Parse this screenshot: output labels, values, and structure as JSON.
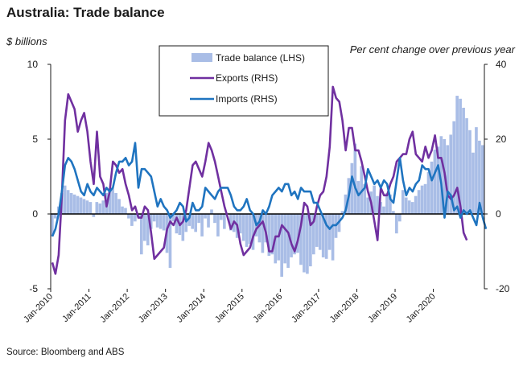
{
  "title": "Australia: Trade balance",
  "source": "Source: Bloomberg and ABS",
  "colors": {
    "balance": "#a9bde6",
    "exports": "#7030a0",
    "imports": "#1f74c0",
    "zero": "#000000"
  },
  "chart_data": {
    "type": "bar",
    "ylabel_left": "$ billions",
    "ylabel_right": "Per cent change over previous year",
    "left_axis": {
      "min": -5,
      "max": 10,
      "ticks": [
        -5,
        0,
        5,
        10
      ]
    },
    "right_axis": {
      "min": -20,
      "max": 40,
      "ticks": [
        -20,
        0,
        20,
        40
      ]
    },
    "x_tick_labels": [
      "Jan-2010",
      "Jan-2011",
      "Jan-2012",
      "Jan-2013",
      "Jan-2014",
      "Jan-2015",
      "Jan-2016",
      "Jan-2017",
      "Jan-2018",
      "Jan-2019",
      "Jan-2020"
    ],
    "legend": {
      "position": "top-center",
      "entries": [
        "Trade balance (LHS)",
        "Exports (RHS)",
        "Imports (RHS)"
      ]
    },
    "grid": false,
    "series": [
      {
        "name": "Trade balance (LHS)",
        "type": "bar",
        "axis": "left",
        "unit": "$ billions",
        "values": [
          -1.5,
          -0.3,
          0.5,
          1.4,
          1.9,
          1.6,
          1.4,
          1.3,
          1.2,
          1.1,
          1.0,
          0.9,
          0.8,
          -0.2,
          0.8,
          0.7,
          0.9,
          1.4,
          1.6,
          1.7,
          1.4,
          1.0,
          0.5,
          0.4,
          -0.3,
          -0.8,
          -0.5,
          -0.2,
          -2.7,
          -1.8,
          -2.1,
          -1.0,
          -0.5,
          -0.9,
          -1.0,
          -1.1,
          -2.6,
          -3.6,
          -0.5,
          -1.3,
          -1.4,
          -1.8,
          -1.2,
          -0.8,
          -1.0,
          -1.2,
          -0.6,
          -1.5,
          -0.3,
          -0.9,
          0.3,
          -0.6,
          -1.5,
          -0.4,
          -1.0,
          0.0,
          -1.1,
          -1.2,
          -1.6,
          -1.3,
          -1.8,
          -2.2,
          -2.0,
          -2.4,
          -1.5,
          -1.9,
          -2.6,
          -1.9,
          -2.8,
          -2.7,
          -3.3,
          -3.1,
          -4.2,
          -3.3,
          -3.6,
          -2.9,
          -2.7,
          -2.6,
          -3.4,
          -3.9,
          -4.0,
          -3.5,
          -2.7,
          -2.2,
          -2.4,
          -2.9,
          -3.0,
          -2.4,
          -3.1,
          -1.6,
          -1.2,
          0.2,
          1.3,
          2.4,
          3.4,
          4.7,
          2.2,
          3.2,
          2.0,
          1.1,
          1.5,
          1.9,
          1.2,
          0.8,
          0.5,
          1.4,
          1.3,
          0.2,
          -1.3,
          -0.5,
          1.6,
          1.1,
          0.9,
          0.8,
          1.2,
          1.6,
          1.9,
          2.0,
          2.8,
          3.5,
          4.3,
          4.5,
          5.2,
          5.0,
          4.6,
          5.3,
          6.2,
          7.9,
          7.7,
          7.1,
          6.4,
          5.6,
          4.1,
          5.8,
          4.9,
          4.6
        ]
      },
      {
        "name": "Exports (RHS)",
        "type": "line",
        "axis": "right",
        "unit": "per cent",
        "values": [
          -13,
          -16,
          -11,
          5,
          25,
          32,
          30,
          28,
          22,
          25,
          27,
          22,
          14,
          8,
          22,
          10,
          8,
          2,
          6,
          14,
          13,
          11,
          12,
          8,
          5,
          1,
          2,
          -1,
          -1,
          2,
          1,
          -5,
          -12,
          -11,
          -10,
          -9,
          -4,
          -2,
          -3,
          -1,
          -3,
          -2,
          1,
          7,
          13,
          14,
          12,
          10,
          14,
          19,
          17,
          14,
          10,
          6,
          2,
          -1,
          -4,
          -2,
          -3,
          -8,
          -11,
          -10,
          -9,
          -6,
          -4,
          -3,
          -2,
          -5,
          -10,
          -10,
          -6,
          -6,
          -3,
          -4,
          -5,
          -8,
          -10,
          -7,
          -3,
          3,
          2,
          -3,
          -2,
          2,
          5,
          6,
          10,
          18,
          34,
          31,
          30,
          25,
          17,
          23,
          23,
          17,
          17,
          14,
          10,
          6,
          3,
          -2,
          -7,
          7,
          5,
          5,
          8,
          10,
          14,
          15,
          16,
          16,
          20,
          22,
          16,
          15,
          14,
          18,
          15,
          17,
          21,
          15,
          15,
          11,
          5,
          4,
          5,
          7,
          2,
          -5,
          -7
        ]
      },
      {
        "name": "Imports (RHS)",
        "type": "line",
        "axis": "right",
        "unit": "per cent",
        "values": [
          -6,
          -4,
          0,
          6,
          13,
          15,
          14,
          12,
          9,
          6,
          5,
          8,
          6,
          5,
          7,
          6,
          5,
          7,
          6,
          7,
          11,
          14,
          14,
          15,
          13,
          14,
          19,
          7,
          12,
          12,
          11,
          10,
          6,
          2,
          4,
          2,
          1,
          -1,
          0,
          1,
          3,
          2,
          -2,
          -1,
          3,
          1,
          1,
          2,
          7,
          6,
          5,
          4,
          6,
          7,
          7,
          7,
          5,
          2,
          1,
          1,
          2,
          4,
          1,
          0,
          -3,
          -2,
          1,
          0,
          2,
          5,
          6,
          7,
          6,
          8,
          8,
          5,
          6,
          4,
          7,
          6,
          6,
          6,
          3,
          3,
          1,
          -1,
          -3,
          -4,
          -3,
          -3,
          -2,
          -1,
          1,
          5,
          10,
          7,
          5,
          6,
          7,
          12,
          10,
          8,
          9,
          7,
          9,
          8,
          4,
          3,
          9,
          15,
          9,
          5,
          7,
          6,
          8,
          9,
          13,
          12,
          12,
          9,
          11,
          13,
          8,
          -1,
          6,
          5,
          1,
          2,
          -1,
          1,
          0,
          1,
          -1,
          -3,
          3,
          -1,
          -4
        ]
      }
    ]
  }
}
